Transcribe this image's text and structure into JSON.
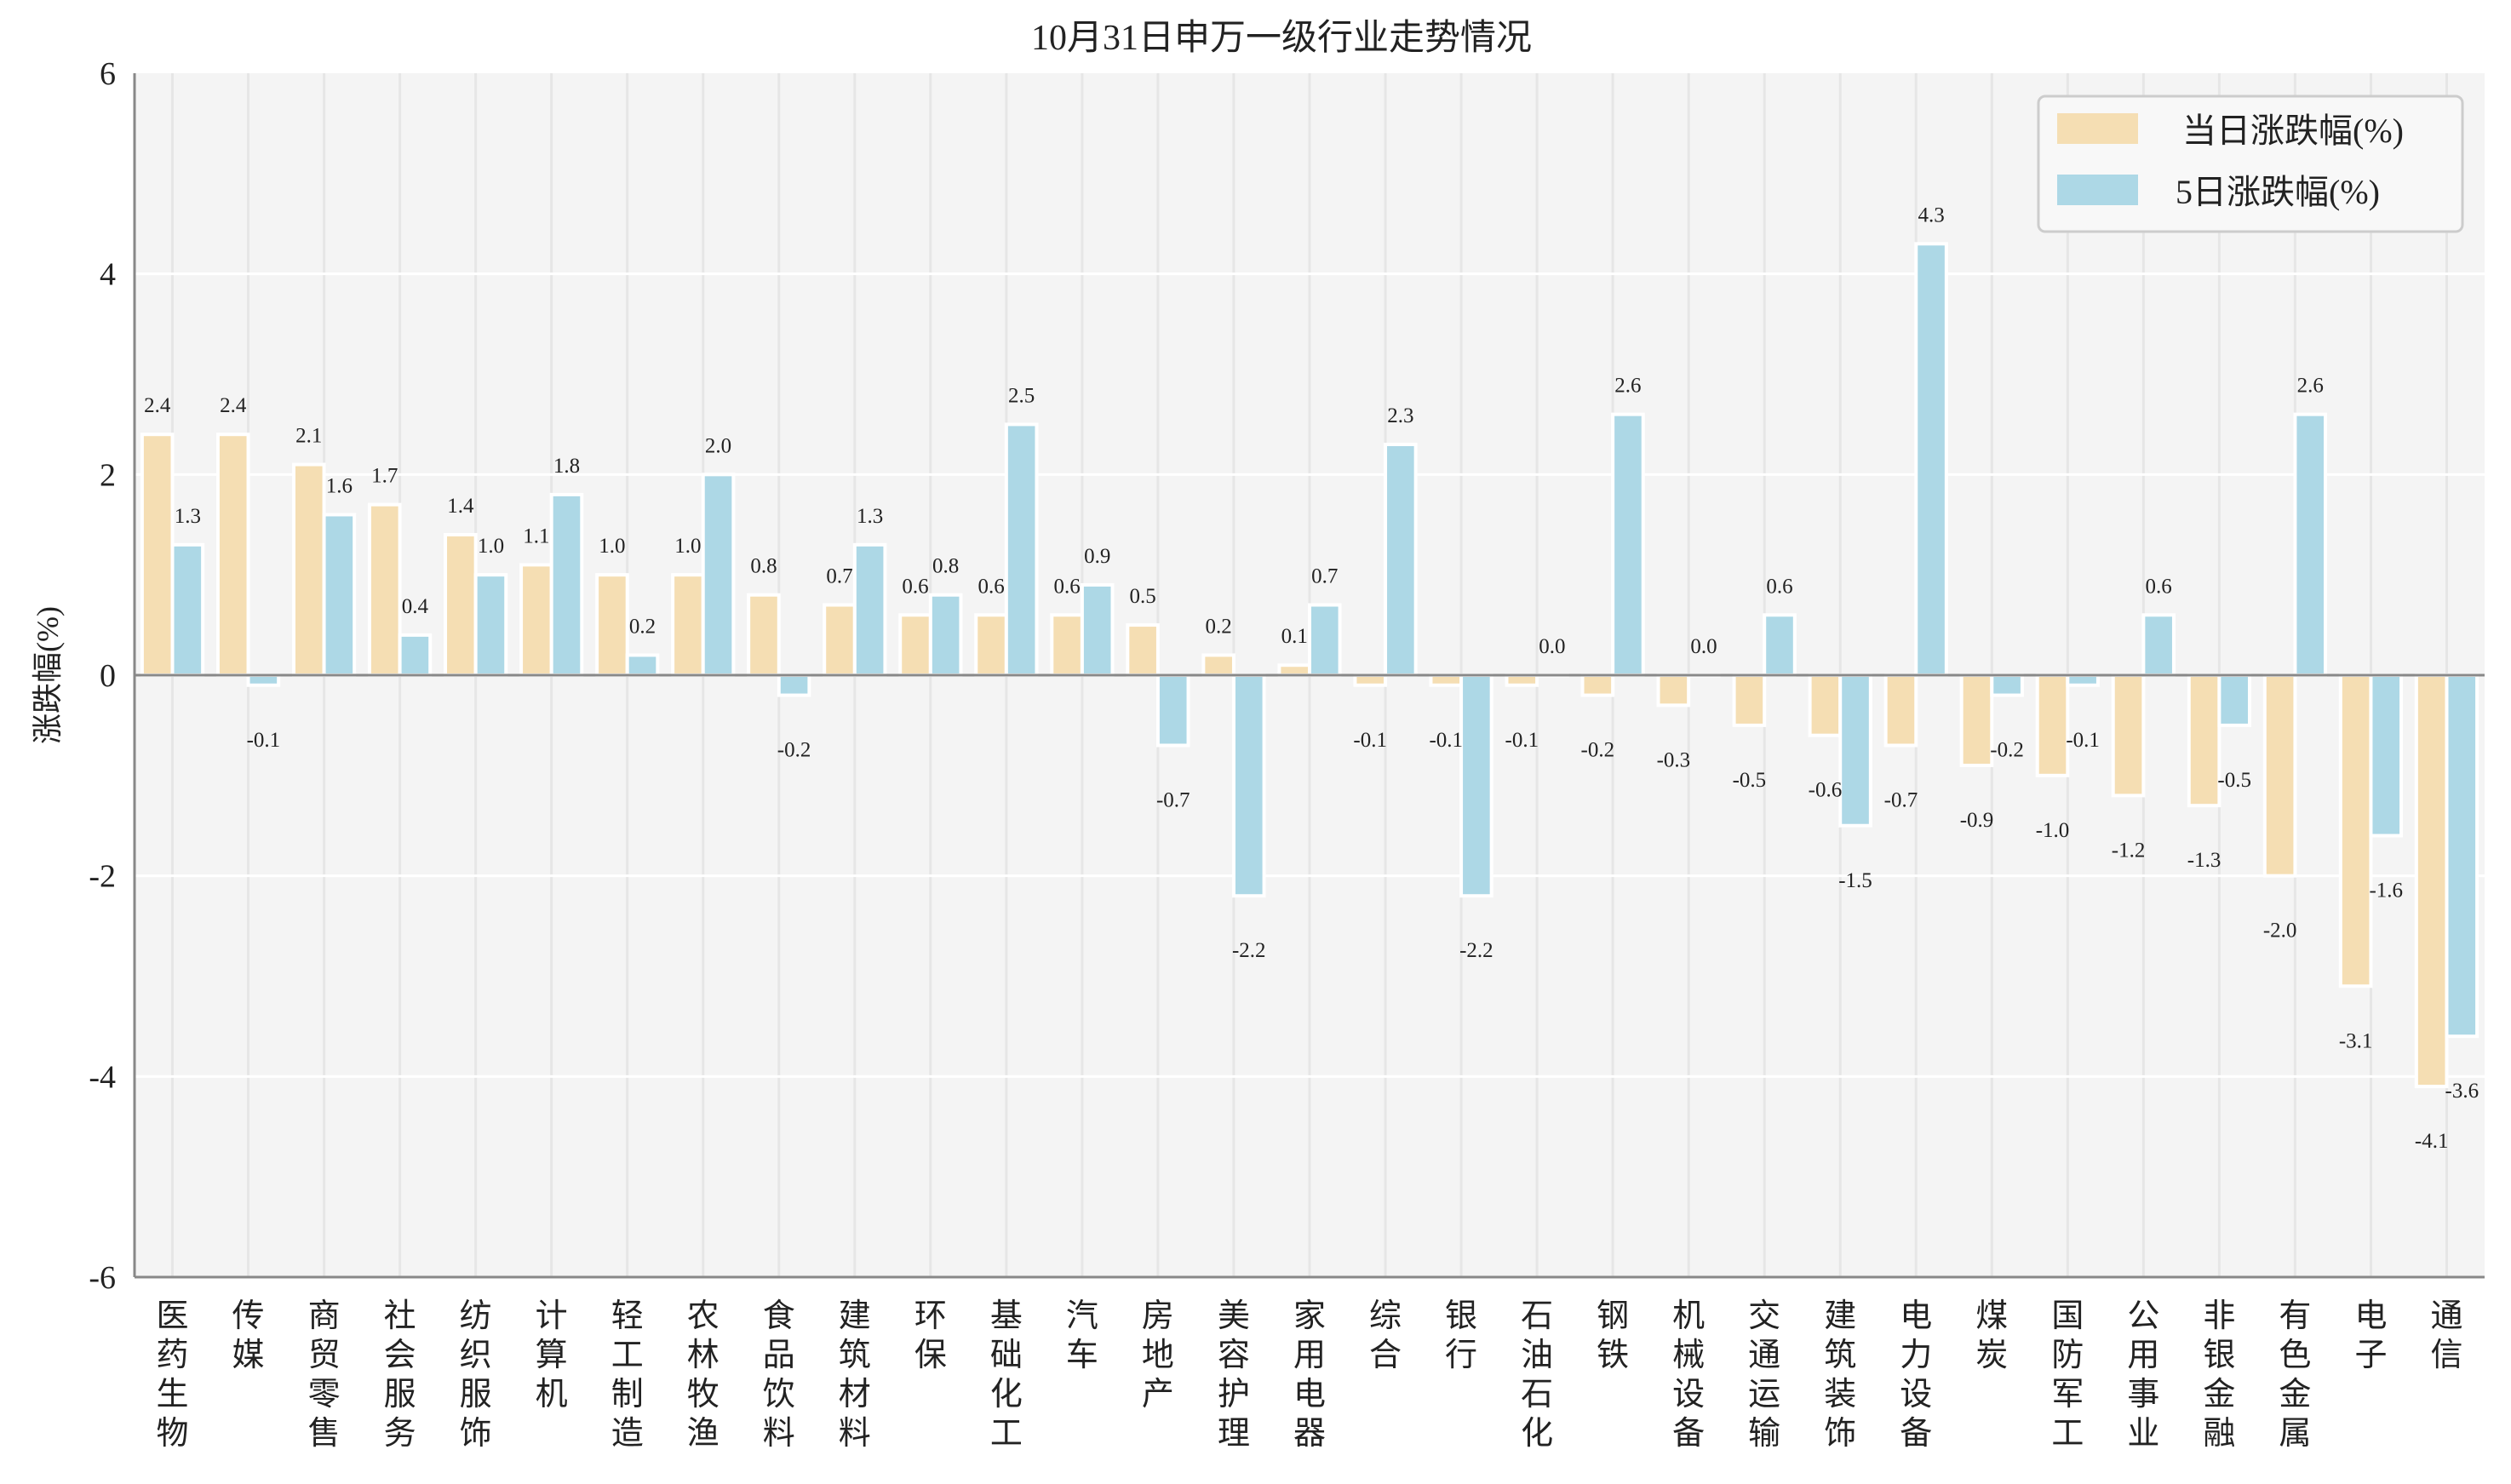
{
  "chart_data": {
    "type": "bar",
    "title": "10月31日申万一级行业走势情况",
    "xlabel": "",
    "ylabel": "涨跌幅(%)",
    "ylim": [
      -6,
      6
    ],
    "yticks": [
      -6,
      -4,
      -2,
      0,
      2,
      4,
      6
    ],
    "grid": true,
    "legend_position": "top-right",
    "categories": [
      "医药生物",
      "传媒",
      "商贸零售",
      "社会服务",
      "纺织服饰",
      "计算机",
      "轻工制造",
      "农林牧渔",
      "食品饮料",
      "建筑材料",
      "环保",
      "基础化工",
      "汽车",
      "房地产",
      "美容护理",
      "家用电器",
      "综合",
      "银行",
      "石油石化",
      "钢铁",
      "机械设备",
      "交通运输",
      "建筑装饰",
      "电力设备",
      "煤炭",
      "国防军工",
      "公用事业",
      "非银金融",
      "有色金属",
      "电子",
      "通信"
    ],
    "series": [
      {
        "name": "当日涨跌幅(%)",
        "color": "#f5deb3",
        "values": [
          2.4,
          2.4,
          2.1,
          1.7,
          1.4,
          1.1,
          1.0,
          1.0,
          0.8,
          0.7,
          0.6,
          0.6,
          0.6,
          0.5,
          0.2,
          0.1,
          -0.1,
          -0.1,
          -0.1,
          -0.2,
          -0.3,
          -0.5,
          -0.6,
          -0.7,
          -0.9,
          -1.0,
          -1.2,
          -1.3,
          -2.0,
          -3.1,
          -4.1
        ]
      },
      {
        "name": "5日涨跌幅(%)",
        "color": "#add8e6",
        "values": [
          1.3,
          -0.1,
          1.6,
          0.4,
          1.0,
          1.8,
          0.2,
          2.0,
          -0.2,
          1.3,
          0.8,
          2.5,
          0.9,
          -0.7,
          -2.2,
          0.7,
          2.3,
          -2.2,
          0.0,
          2.6,
          0.0,
          0.6,
          -1.5,
          4.3,
          -0.2,
          -0.1,
          0.6,
          -0.5,
          2.6,
          -1.6,
          -3.6
        ]
      }
    ]
  }
}
